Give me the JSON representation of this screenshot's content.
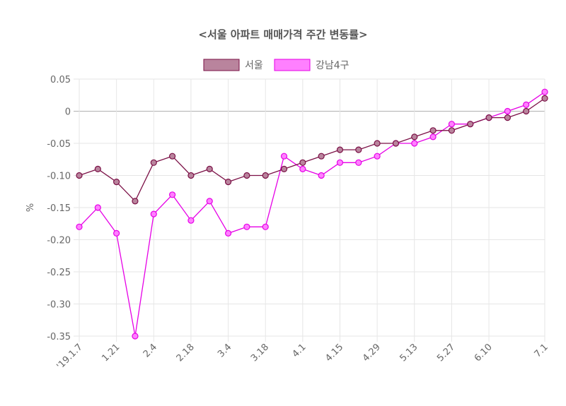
{
  "chart_data": {
    "type": "line",
    "title": "<서울 아파트 매매가격 주간 변동률>",
    "xlabel": "",
    "ylabel": "%",
    "ylim": [
      -0.35,
      0.05
    ],
    "yticks": [
      "0.05",
      "0",
      "-0.05",
      "-0.10",
      "-0.15",
      "-0.20",
      "-0.25",
      "-0.30",
      "-0.35"
    ],
    "x_tick_labels": [
      "'19.1.7",
      "1.21",
      "2.4",
      "2.18",
      "3.4",
      "3.18",
      "4.1",
      "4.15",
      "4.29",
      "5.13",
      "5.27",
      "6.10",
      "7.1"
    ],
    "legend_position": "top-center",
    "series": [
      {
        "name": "서울",
        "color": "#7b1046",
        "fill": "#b9849d",
        "values": [
          -0.1,
          -0.09,
          -0.11,
          -0.14,
          -0.08,
          -0.07,
          -0.1,
          -0.09,
          -0.11,
          -0.1,
          -0.1,
          -0.09,
          -0.08,
          -0.07,
          -0.06,
          -0.06,
          -0.05,
          -0.05,
          -0.04,
          -0.03,
          -0.03,
          -0.02,
          -0.01,
          -0.01,
          0.0,
          0.02
        ]
      },
      {
        "name": "강남4구",
        "color": "#e600e6",
        "fill": "#ff80ff",
        "values": [
          -0.18,
          -0.15,
          -0.19,
          -0.35,
          -0.16,
          -0.13,
          -0.17,
          -0.14,
          -0.19,
          -0.18,
          -0.18,
          -0.07,
          -0.09,
          -0.1,
          -0.08,
          -0.08,
          -0.07,
          -0.05,
          -0.05,
          -0.04,
          -0.02,
          -0.02,
          -0.01,
          0.0,
          0.01,
          0.03
        ]
      }
    ]
  }
}
